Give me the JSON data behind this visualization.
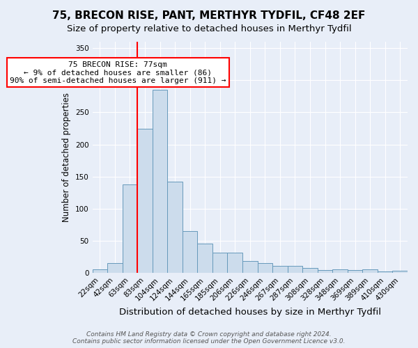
{
  "title": "75, BRECON RISE, PANT, MERTHYR TYDFIL, CF48 2EF",
  "subtitle": "Size of property relative to detached houses in Merthyr Tydfil",
  "xlabel": "Distribution of detached houses by size in Merthyr Tydfil",
  "ylabel": "Number of detached properties",
  "categories": [
    "22sqm",
    "42sqm",
    "63sqm",
    "83sqm",
    "104sqm",
    "124sqm",
    "144sqm",
    "165sqm",
    "185sqm",
    "206sqm",
    "226sqm",
    "246sqm",
    "267sqm",
    "287sqm",
    "308sqm",
    "328sqm",
    "348sqm",
    "369sqm",
    "389sqm",
    "410sqm",
    "430sqm"
  ],
  "values": [
    5,
    15,
    138,
    224,
    285,
    142,
    65,
    46,
    31,
    31,
    18,
    15,
    11,
    11,
    8,
    4,
    5,
    4,
    5,
    2,
    3
  ],
  "bar_color": "#ccdcec",
  "bar_edge_color": "#6699bb",
  "vline_color": "red",
  "vline_x_index": 2.5,
  "annotation_text": "75 BRECON RISE: 77sqm\n← 9% of detached houses are smaller (86)\n90% of semi-detached houses are larger (911) →",
  "annotation_box_color": "white",
  "annotation_box_edge_color": "red",
  "ylim": [
    0,
    360
  ],
  "yticks": [
    0,
    50,
    100,
    150,
    200,
    250,
    300,
    350
  ],
  "footer_text": "Contains HM Land Registry data © Crown copyright and database right 2024.\nContains public sector information licensed under the Open Government Licence v3.0.",
  "background_color": "#e8eef8",
  "plot_background_color": "#e8eef8",
  "title_fontsize": 11,
  "subtitle_fontsize": 9.5,
  "xlabel_fontsize": 9.5,
  "ylabel_fontsize": 8.5,
  "tick_fontsize": 7.5,
  "footer_fontsize": 6.5,
  "annotation_fontsize": 8
}
